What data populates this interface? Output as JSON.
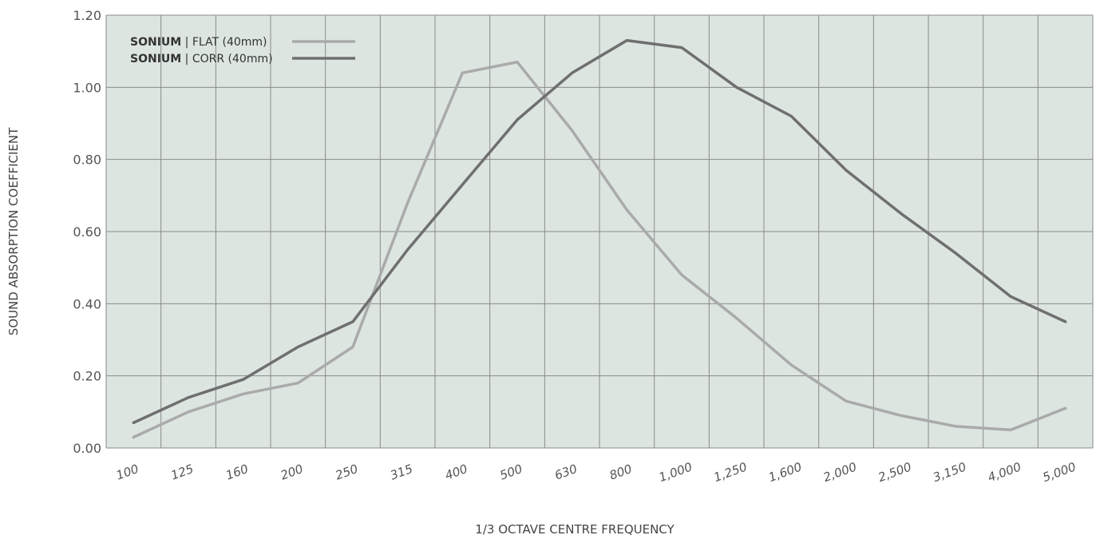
{
  "chart_data": {
    "type": "line",
    "xlabel": "1/3 OCTAVE CENTRE FREQUENCY",
    "ylabel": "SOUND ABSORPTION COEFFICIENT",
    "categories": [
      "100",
      "125",
      "160",
      "200",
      "250",
      "315",
      "400",
      "500",
      "630",
      "800",
      "1,000",
      "1,250",
      "1,600",
      "2,000",
      "2,500",
      "3,150",
      "4,000",
      "5,000"
    ],
    "y_ticks": [
      "0.00",
      "0.20",
      "0.40",
      "0.60",
      "0.80",
      "1.00",
      "1.20"
    ],
    "ylim": [
      0,
      1.2
    ],
    "grid": true,
    "legend_position": "top-left",
    "series": [
      {
        "name_brand": "SONIUM",
        "name_rest": " | FLAT (40mm)",
        "color": "#aaaaaa",
        "values": [
          0.03,
          0.1,
          0.15,
          0.18,
          0.28,
          0.68,
          1.04,
          1.07,
          0.88,
          0.66,
          0.48,
          0.36,
          0.23,
          0.13,
          0.09,
          0.06,
          0.05,
          0.11
        ]
      },
      {
        "name_brand": "SONIUM",
        "name_rest": " | CORR (40mm)",
        "color": "#6f6f6f",
        "values": [
          0.07,
          0.14,
          0.19,
          0.28,
          0.35,
          0.55,
          0.73,
          0.91,
          1.04,
          1.13,
          1.11,
          1.0,
          0.92,
          0.77,
          0.65,
          0.54,
          0.42,
          0.35
        ]
      }
    ]
  }
}
